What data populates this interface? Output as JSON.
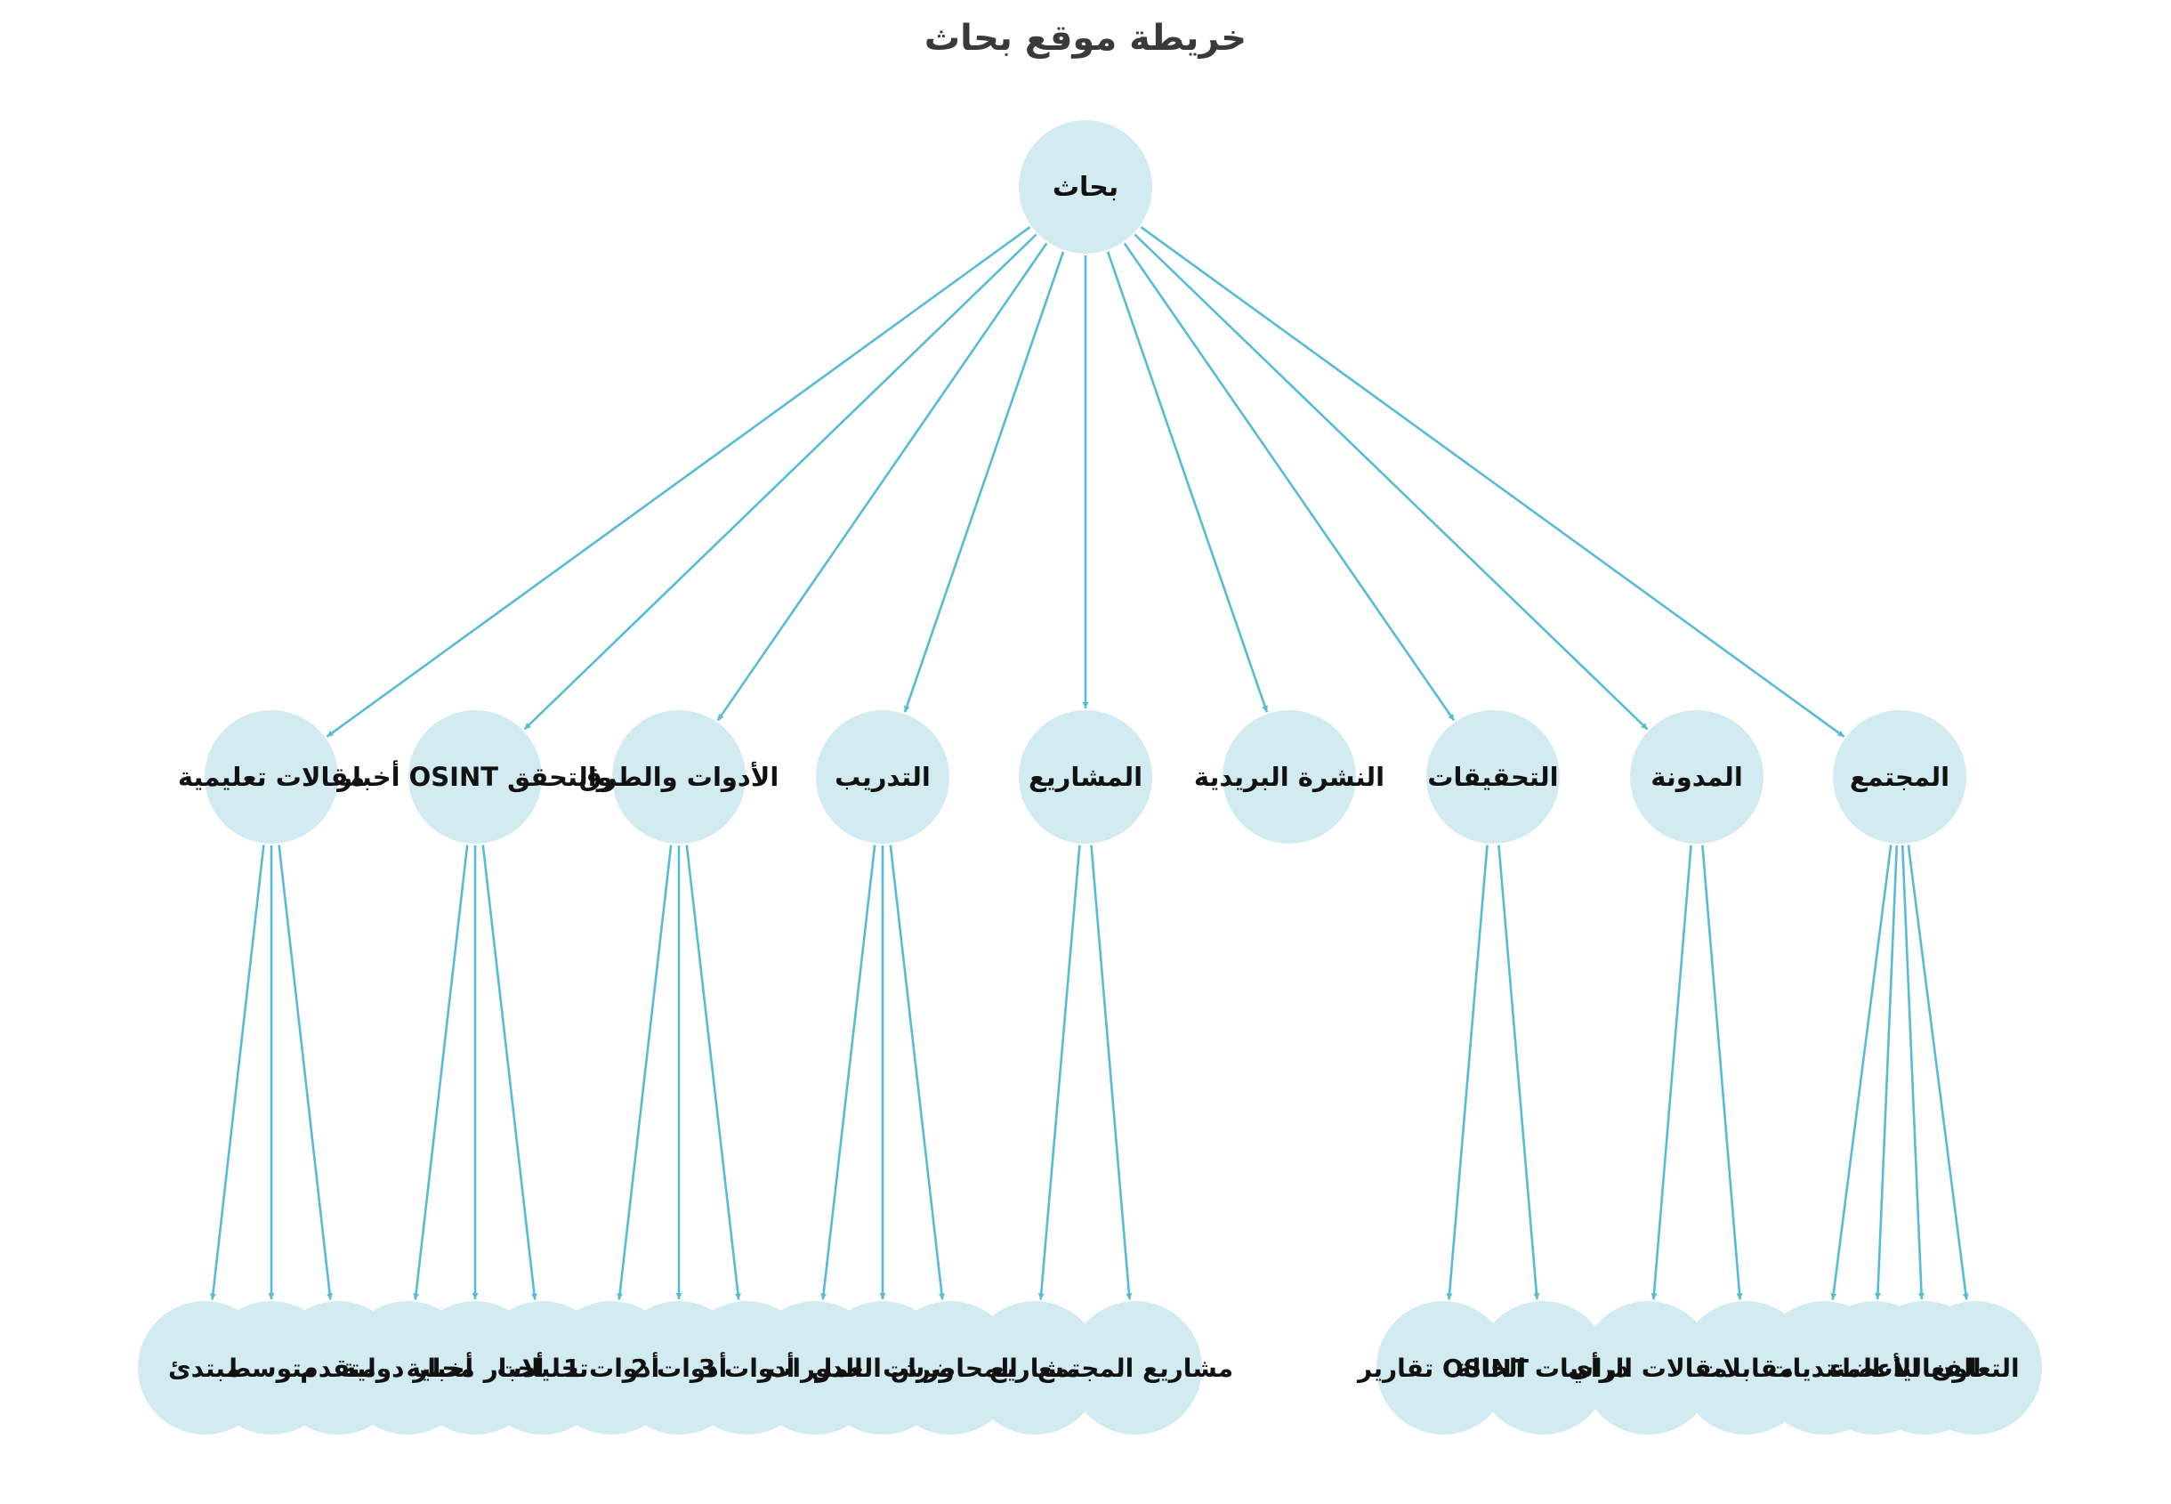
{
  "title": "خريطة موقع بحاث",
  "colors": {
    "node_fill": "#d1ebf0",
    "edge": "#56bcd6",
    "label": "#111111",
    "title": "#3a3a3a"
  },
  "root": {
    "id": "root",
    "label": "بحاث"
  },
  "sections": [
    {
      "id": "s1",
      "label": "مقالات تعليمية",
      "children": [
        {
          "id": "s1c1",
          "label": "مبتدئ"
        },
        {
          "id": "s1c2",
          "label": "متوسط"
        },
        {
          "id": "s1c3",
          "label": "متقدم"
        }
      ]
    },
    {
      "id": "s2",
      "label": "أخبار OSINT والتحقق",
      "children": [
        {
          "id": "s2c1",
          "label": "أخبار دولية"
        },
        {
          "id": "s2c2",
          "label": "أخبار محلية"
        },
        {
          "id": "s2c3",
          "label": "تحليلات"
        }
      ]
    },
    {
      "id": "s3",
      "label": "الأدوات والطرق",
      "children": [
        {
          "id": "s3c1",
          "label": "أدوات 1"
        },
        {
          "id": "s3c2",
          "label": "أدوات 2"
        },
        {
          "id": "s3c3",
          "label": "أدوات 3"
        }
      ]
    },
    {
      "id": "s4",
      "label": "التدريب",
      "children": [
        {
          "id": "s4c1",
          "label": "الدورات"
        },
        {
          "id": "s4c2",
          "label": "ورش العمل"
        },
        {
          "id": "s4c3",
          "label": "المحاضرات"
        }
      ]
    },
    {
      "id": "s5",
      "label": "المشاريع",
      "children": [
        {
          "id": "s5c1",
          "label": "مشاريع"
        },
        {
          "id": "s5c2",
          "label": "مشاريع المجتمع"
        }
      ]
    },
    {
      "id": "s6",
      "label": "النشرة البريدية",
      "children": []
    },
    {
      "id": "s7",
      "label": "التحقيقات",
      "children": [
        {
          "id": "s7c1",
          "label": "تقارير OSINT"
        },
        {
          "id": "s7c2",
          "label": "دراسات الحالة"
        }
      ]
    },
    {
      "id": "s8",
      "label": "المدونة",
      "children": [
        {
          "id": "s8c1",
          "label": "مقالات الرأي"
        },
        {
          "id": "s8c2",
          "label": "مقابلات"
        }
      ]
    },
    {
      "id": "s9",
      "label": "المجتمع",
      "children": [
        {
          "id": "s9c1",
          "label": "المنتديات"
        },
        {
          "id": "s9c2",
          "label": "الأعضاء"
        },
        {
          "id": "s9c3",
          "label": "الفعاليات"
        },
        {
          "id": "s9c4",
          "label": "التعاون"
        }
      ]
    }
  ]
}
